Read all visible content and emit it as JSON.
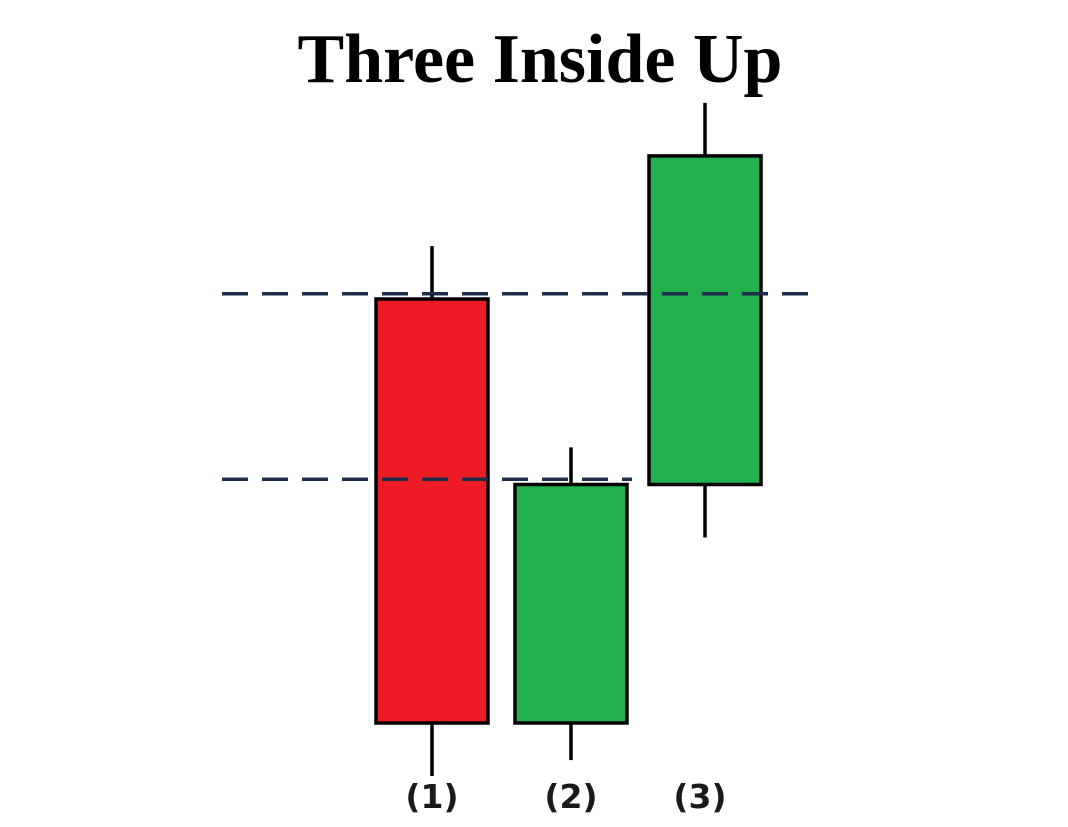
{
  "title": "Three Inside Up",
  "colors": {
    "bearish": "#ed1c24",
    "bullish": "#22b14c",
    "outline": "#000000",
    "reference_line": "#1f2d4d",
    "background": "#ffffff"
  },
  "candles": [
    {
      "label": "(1)",
      "direction": "bearish",
      "open": 100,
      "close": 20,
      "high": 110,
      "low": 10
    },
    {
      "label": "(2)",
      "direction": "bullish",
      "open": 20,
      "close": 65,
      "high": 72,
      "low": 13
    },
    {
      "label": "(3)",
      "direction": "bullish",
      "open": 65,
      "close": 127,
      "high": 137,
      "low": 55
    }
  ],
  "reference_lines": [
    {
      "name": "candle-1-open-level",
      "value": 101
    },
    {
      "name": "candle-2-close-level",
      "value": 66
    }
  ]
}
